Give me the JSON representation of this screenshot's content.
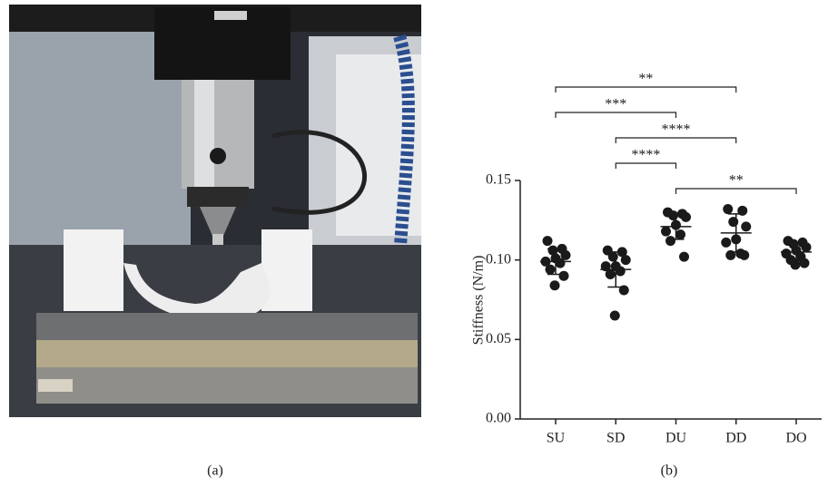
{
  "figure": {
    "panel_labels": [
      "(a)",
      "(b)"
    ]
  },
  "chart_data": {
    "type": "dot_plot",
    "ylabel": "Stiffness (N/m)",
    "categories": [
      "SU",
      "SD",
      "DU",
      "DD",
      "DO"
    ],
    "values": [
      [
        0.112,
        0.107,
        0.106,
        0.103,
        0.101,
        0.099,
        0.098,
        0.094,
        0.09,
        0.084
      ],
      [
        0.106,
        0.105,
        0.102,
        0.1,
        0.096,
        0.096,
        0.093,
        0.091,
        0.081,
        0.065
      ],
      [
        0.13,
        0.129,
        0.128,
        0.127,
        0.122,
        0.118,
        0.116,
        0.112,
        0.102
      ],
      [
        0.132,
        0.131,
        0.124,
        0.121,
        0.113,
        0.111,
        0.104,
        0.103,
        0.103
      ],
      [
        0.112,
        0.111,
        0.11,
        0.108,
        0.106,
        0.104,
        0.102,
        0.1,
        0.098,
        0.097
      ]
    ],
    "means": [
      0.099,
      0.094,
      0.121,
      0.117,
      0.105
    ],
    "errors": [
      0.008,
      0.011,
      0.008,
      0.012,
      0.005
    ],
    "color": "#1a1a1a",
    "ylim": [
      0,
      0.15
    ],
    "yticks": [
      {
        "value": 0,
        "label": "0.00"
      },
      {
        "value": 0.05,
        "label": "0.05"
      },
      {
        "value": 0.1,
        "label": "0.10"
      },
      {
        "value": 0.15,
        "label": "0.15"
      }
    ],
    "significance": [
      {
        "from": "SU",
        "to": "DD",
        "label": "**"
      },
      {
        "from": "SU",
        "to": "DU",
        "label": "***"
      },
      {
        "from": "SD",
        "to": "DD",
        "label": "****"
      },
      {
        "from": "SD",
        "to": "DU",
        "label": "****"
      },
      {
        "from": "DU",
        "to": "DO",
        "label": "**"
      }
    ]
  }
}
